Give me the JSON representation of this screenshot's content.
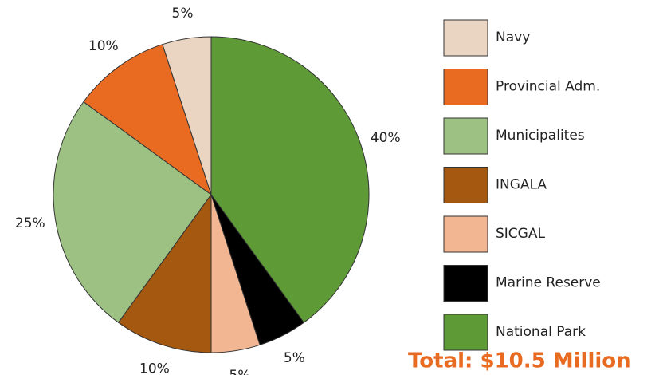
{
  "chart_data": {
    "type": "pie",
    "categories": [
      "Navy",
      "Provincial Adm.",
      "Municipalites",
      "INGALA",
      "SICGAL",
      "Marine Reserve",
      "National Park"
    ],
    "values": [
      5,
      10,
      25,
      10,
      5,
      5,
      40
    ],
    "value_labels": [
      "5%",
      "10%",
      "25%",
      "10%",
      "5%",
      "5%",
      "40%"
    ],
    "colors": [
      "#ead5c3",
      "#e86b21",
      "#9dc183",
      "#a5580f",
      "#f3b693",
      "#000000",
      "#5e9a35"
    ],
    "annotation": "Total: $10.5 Million",
    "legend": "right"
  }
}
